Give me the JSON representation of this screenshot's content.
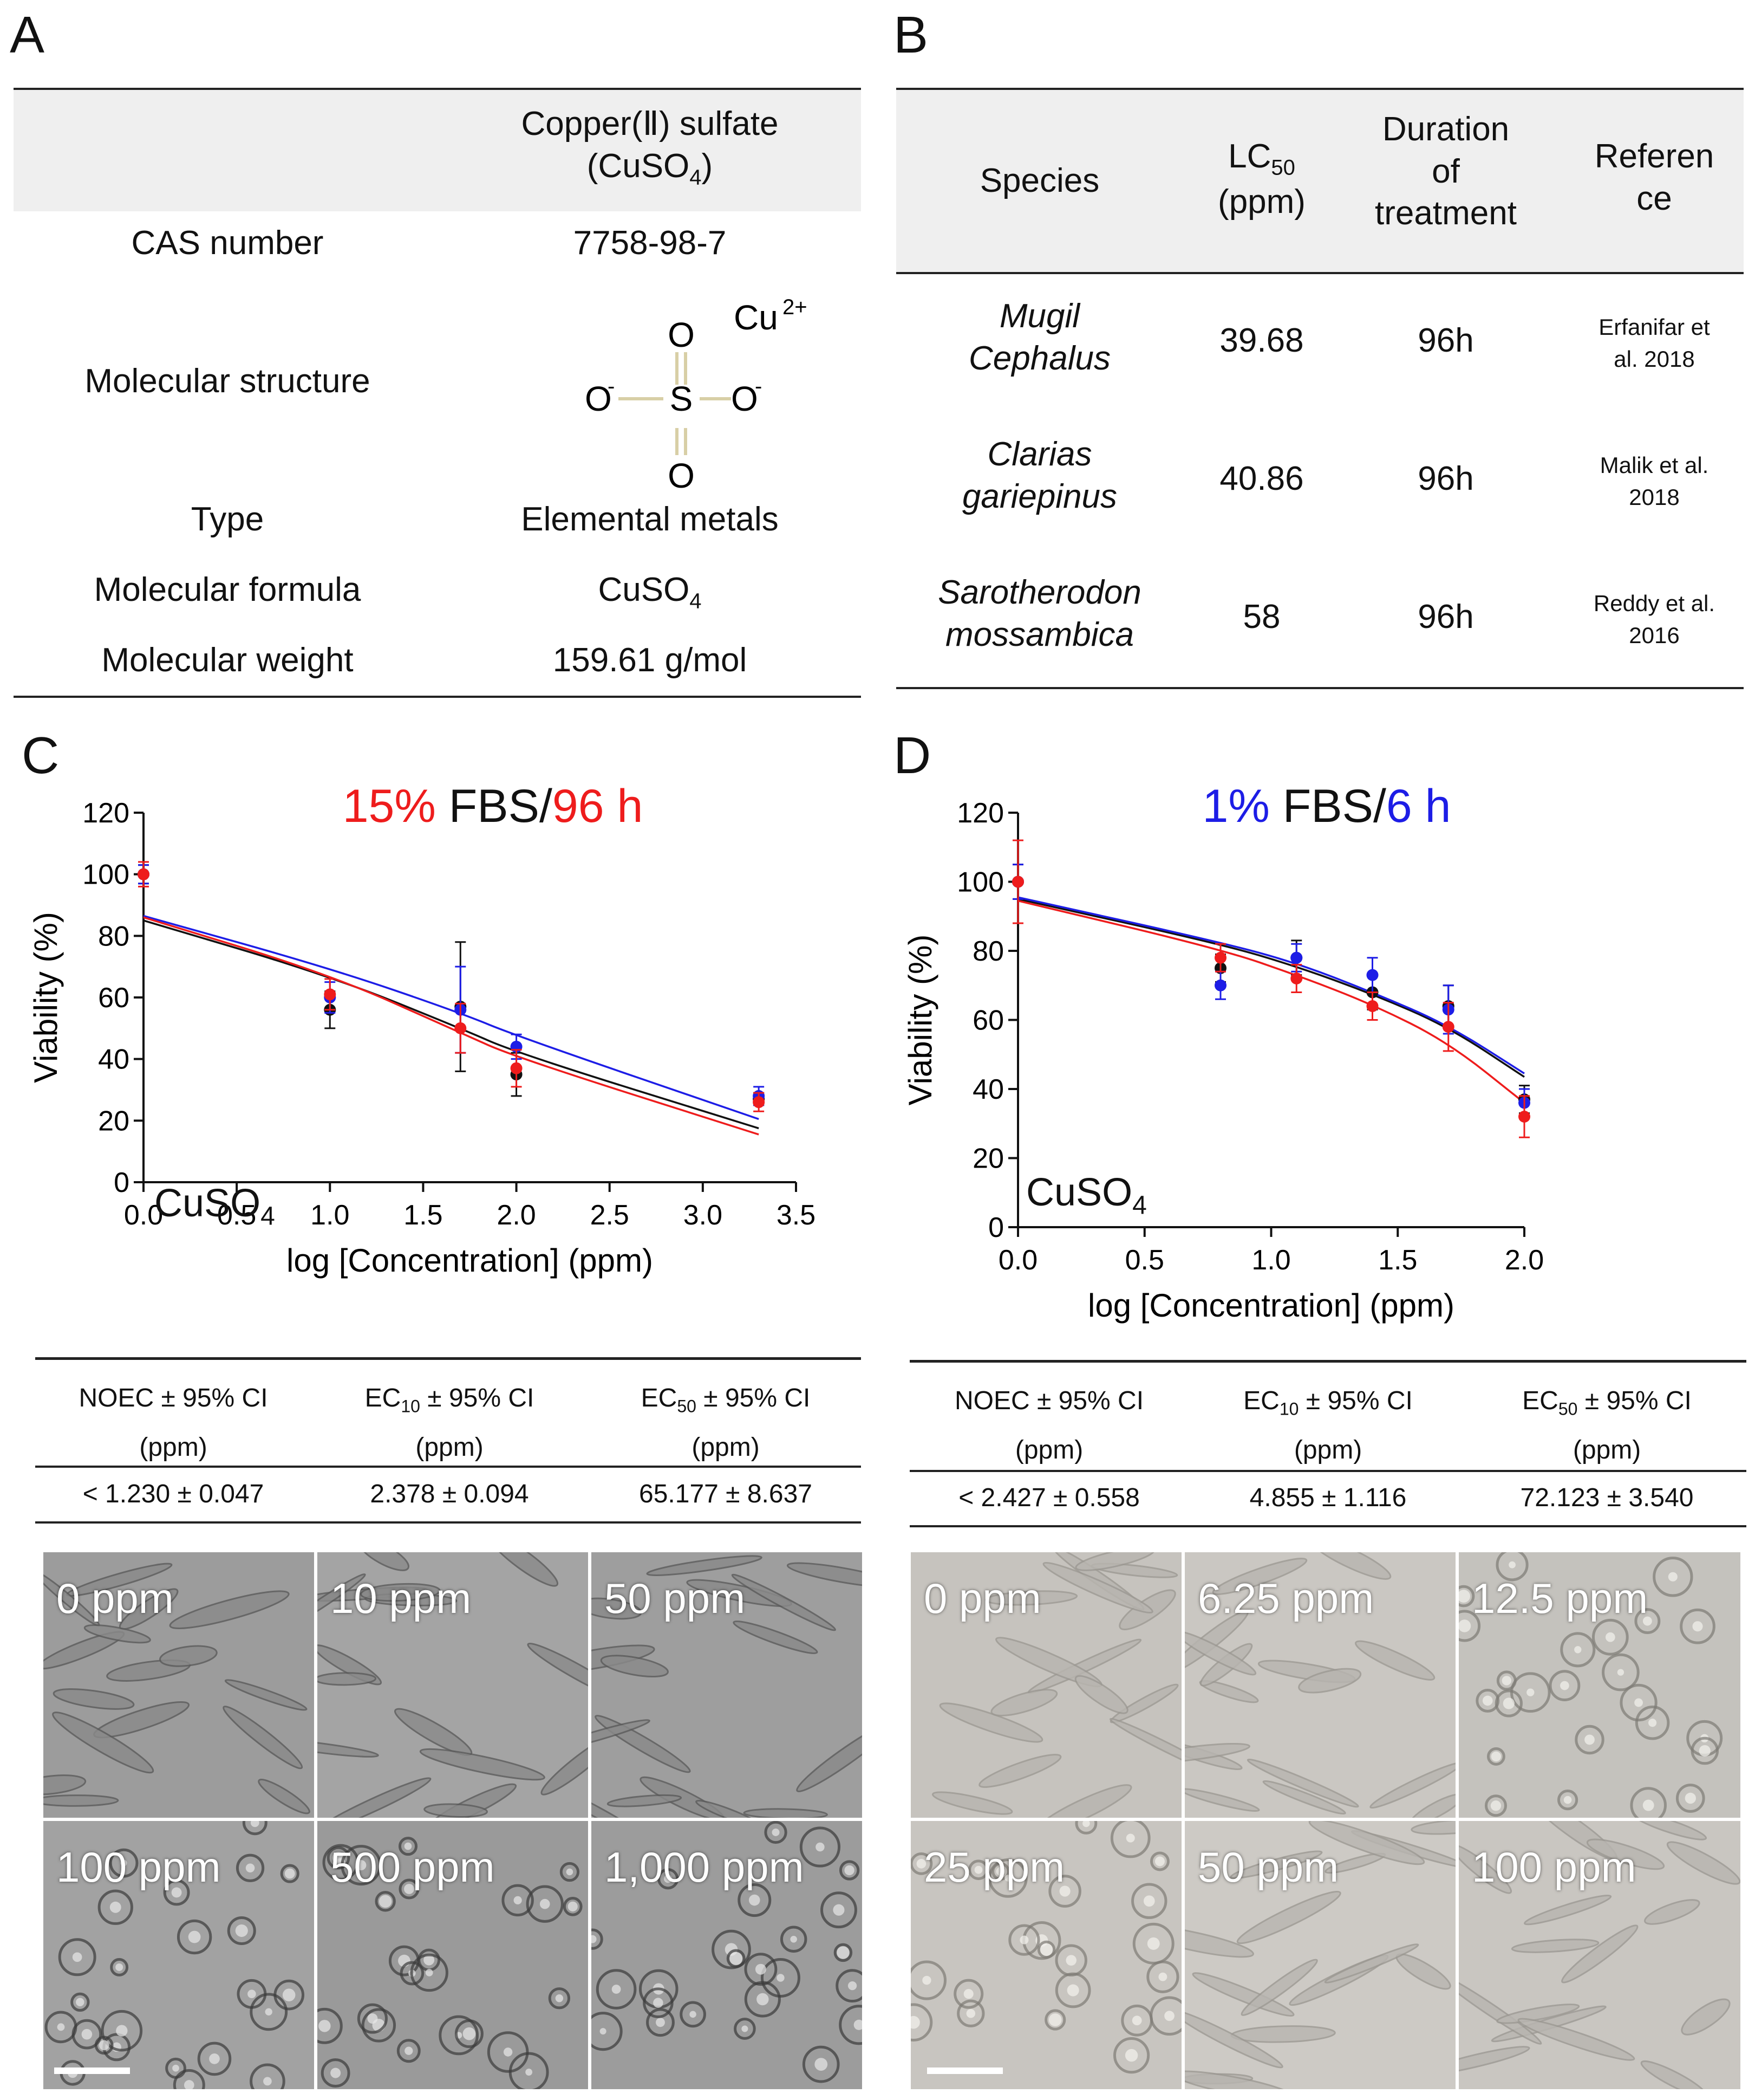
{
  "panels": {
    "a": "A",
    "b": "B",
    "c": "C",
    "d": "D"
  },
  "panel_a": {
    "compound_line1": "Copper(Ⅱ) sulfate",
    "compound_line2_pre": "(CuSO",
    "compound_line2_sub": "4",
    "compound_line2_post": ")",
    "rows": [
      {
        "label": "CAS number",
        "value": "7758-98-7"
      },
      {
        "label": "Molecular structure"
      },
      {
        "label": "Type",
        "value": "Elemental metals"
      },
      {
        "label": "Molecular formula",
        "value_pre": "CuSO",
        "value_sub": "4"
      },
      {
        "label": "Molecular weight",
        "value": "159.61 g/mol"
      }
    ],
    "structure": {
      "ion": "Cu",
      "ion_charge": "2+",
      "oxygen": "O",
      "sulfur": "S",
      "minus": "-"
    }
  },
  "panel_b": {
    "headers": {
      "species": "Species",
      "lc_pre": "LC",
      "lc_sub": "50",
      "lc_unit": "(ppm)",
      "duration_1": "Duration",
      "duration_2": "of",
      "duration_3": "treatment",
      "ref_1": "Referen",
      "ref_2": "ce"
    },
    "rows": [
      {
        "species_1": "Mugil",
        "species_2": "Cephalus",
        "lc50": "39.68",
        "duration": "96h",
        "ref_1": "Erfanifar et",
        "ref_2": "al. 2018"
      },
      {
        "species_1": "Clarias",
        "species_2": "gariepinus",
        "lc50": "40.86",
        "duration": "96h",
        "ref_1": "Malik et al.",
        "ref_2": "2018"
      },
      {
        "species_1": "Sarotherodon",
        "species_2": "mossambica",
        "lc50": "58",
        "duration": "96h",
        "ref_1": "Reddy et al.",
        "ref_2": "2016"
      }
    ]
  },
  "panel_c": {
    "title_pct": "15%",
    "title_mid": " FBS/",
    "title_time": "96 h",
    "compound_pre": "CuSO",
    "compound_sub": "4",
    "table": {
      "h1_1": "NOEC ± 95% CI",
      "h1_2": "(ppm)",
      "h2_pre": "EC",
      "h2_sub": "10",
      "h2_post": " ± 95% CI",
      "h2_2": "(ppm)",
      "h3_pre": "EC",
      "h3_sub": "50",
      "h3_post": " ± 95% CI",
      "h3_2": "(ppm)",
      "v1": "< 1.230 ± 0.047",
      "v2": "2.378 ± 0.094",
      "v3": "65.177 ± 8.637"
    },
    "images": [
      "0 ppm",
      "10 ppm",
      "50 ppm",
      "100 ppm",
      "500 ppm",
      "1,000 ppm"
    ]
  },
  "panel_d": {
    "title_pct": "1%",
    "title_mid": " FBS/",
    "title_time": "6 h",
    "compound_pre": "CuSO",
    "compound_sub": "4",
    "table": {
      "h1_1": "NOEC ± 95% CI",
      "h1_2": "(ppm)",
      "h2_pre": "EC",
      "h2_sub": "10",
      "h2_post": " ± 95% CI",
      "h2_2": "(ppm)",
      "h3_pre": "EC",
      "h3_sub": "50",
      "h3_post": " ± 95% CI",
      "h3_2": "(ppm)",
      "v1": "< 2.427 ± 0.558",
      "v2": "4.855 ± 1.116",
      "v3": "72.123 ± 3.540"
    },
    "images": [
      "0 ppm",
      "6.25 ppm",
      "12.5 ppm",
      "25 ppm",
      "50 ppm",
      "100 ppm"
    ]
  },
  "colors": {
    "red": "#ee1c1c",
    "blue": "#1d1de6",
    "black": "#111111",
    "bond": "#d8cfa6"
  },
  "chart_data": [
    {
      "id": "C",
      "type": "scatter",
      "title": "15% FBS/96 h",
      "xlabel": "log [Concentration] (ppm)",
      "ylabel": "Viability (%)",
      "xlim": [
        0,
        3.5
      ],
      "ylim": [
        0,
        120
      ],
      "xticks": [
        0,
        0.5,
        1,
        1.5,
        2,
        2.5,
        3,
        3.5
      ],
      "xtick_labels": [
        "0.0",
        "0.5",
        "1.0",
        "1.5",
        "2.0",
        "2.5",
        "3.0",
        "3.5"
      ],
      "yticks": [
        0,
        20,
        40,
        60,
        80,
        100,
        120
      ],
      "ytick_labels": [
        "0",
        "20",
        "40",
        "60",
        "80",
        "100",
        "120"
      ],
      "x": [
        0,
        1,
        1.7,
        2,
        3.3
      ],
      "series": [
        {
          "name": "black",
          "color": "#111111",
          "values": [
            100,
            56,
            57,
            35,
            27
          ],
          "err": [
            3,
            6,
            21,
            7,
            2
          ],
          "curve": [
            85.0,
            67.0,
            50.0,
            42.0,
            17.5
          ]
        },
        {
          "name": "blue",
          "color": "#1d1de6",
          "values": [
            100,
            60,
            56,
            44,
            28
          ],
          "err": [
            3,
            5,
            14,
            4,
            3
          ],
          "curve": [
            86.5,
            69.5,
            55.0,
            47.5,
            20.5
          ]
        },
        {
          "name": "red",
          "color": "#ee1c1c",
          "values": [
            100,
            61,
            50,
            37,
            26
          ],
          "err": [
            4,
            5,
            8,
            6,
            3
          ],
          "curve": [
            86.0,
            67.5,
            48.5,
            40.5,
            15.5
          ]
        }
      ]
    },
    {
      "id": "D",
      "type": "scatter",
      "title": "1% FBS/6 h",
      "xlabel": "log [Concentration] (ppm)",
      "ylabel": "Viability (%)",
      "xlim": [
        0,
        2
      ],
      "ylim": [
        0,
        120
      ],
      "xticks": [
        0,
        0.5,
        1,
        1.5,
        2
      ],
      "xtick_labels": [
        "0.0",
        "0.5",
        "1.0",
        "1.5",
        "2.0"
      ],
      "yticks": [
        0,
        20,
        40,
        60,
        80,
        100,
        120
      ],
      "ytick_labels": [
        "0",
        "20",
        "40",
        "60",
        "80",
        "100",
        "120"
      ],
      "x": [
        0,
        0.8,
        1.1,
        1.4,
        1.7,
        2.0
      ],
      "series": [
        {
          "name": "black",
          "color": "#111111",
          "values": [
            100,
            75,
            78,
            68,
            64,
            37
          ],
          "err": [
            5,
            4,
            5,
            5,
            6,
            4
          ],
          "curve": [
            95.0,
            82.0,
            75.5,
            67.5,
            58.0,
            43.5
          ]
        },
        {
          "name": "blue",
          "color": "#1d1de6",
          "values": [
            100,
            70,
            78,
            73,
            63,
            36
          ],
          "err": [
            5,
            4,
            4,
            5,
            7,
            4
          ],
          "curve": [
            95.5,
            82.5,
            76.5,
            68.0,
            58.5,
            44.5
          ]
        },
        {
          "name": "red",
          "color": "#ee1c1c",
          "values": [
            100,
            78,
            72,
            64,
            58,
            32
          ],
          "err": [
            12,
            4,
            4,
            4,
            7,
            6
          ],
          "curve": [
            94.5,
            80.5,
            73.0,
            64.5,
            53.5,
            36.0
          ]
        }
      ]
    }
  ]
}
